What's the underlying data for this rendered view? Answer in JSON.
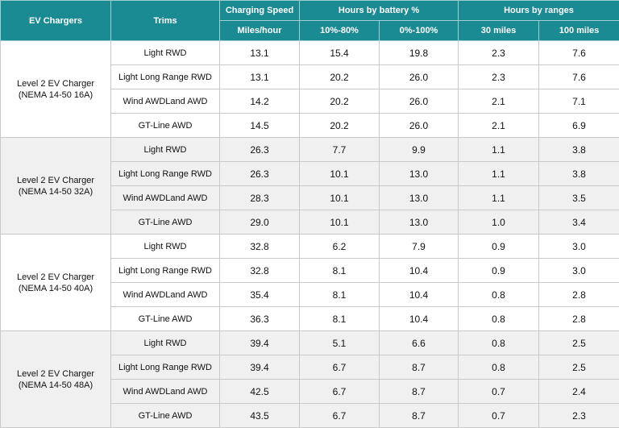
{
  "headers": {
    "ev_chargers": "EV Chargers",
    "trims": "Trims",
    "charging_speed": "Charging Speed",
    "hours_by_battery": "Hours by battery %",
    "hours_by_ranges": "Hours by ranges",
    "miles_per_hour": "Miles/hour",
    "pct_10_80": "10%-80%",
    "pct_0_100": "0%-100%",
    "miles_30": "30 miles",
    "miles_100": "100 miles"
  },
  "groups": [
    {
      "charger_line1": "Level 2 EV Charger",
      "charger_line2": "(NEMA 14-50 16A)",
      "rows": [
        {
          "trim": "Light RWD",
          "speed": "13.1",
          "p10_80": "15.4",
          "p0_100": "19.8",
          "m30": "2.3",
          "m100": "7.6"
        },
        {
          "trim": "Light Long Range RWD",
          "speed": "13.1",
          "p10_80": "20.2",
          "p0_100": "26.0",
          "m30": "2.3",
          "m100": "7.6"
        },
        {
          "trim": "Wind AWDLand AWD",
          "speed": "14.2",
          "p10_80": "20.2",
          "p0_100": "26.0",
          "m30": "2.1",
          "m100": "7.1"
        },
        {
          "trim": "GT-Line AWD",
          "speed": "14.5",
          "p10_80": "20.2",
          "p0_100": "26.0",
          "m30": "2.1",
          "m100": "6.9"
        }
      ]
    },
    {
      "charger_line1": "Level 2 EV Charger",
      "charger_line2": "(NEMA 14-50 32A)",
      "rows": [
        {
          "trim": "Light RWD",
          "speed": "26.3",
          "p10_80": "7.7",
          "p0_100": "9.9",
          "m30": "1.1",
          "m100": "3.8"
        },
        {
          "trim": "Light Long Range RWD",
          "speed": "26.3",
          "p10_80": "10.1",
          "p0_100": "13.0",
          "m30": "1.1",
          "m100": "3.8"
        },
        {
          "trim": "Wind AWDLand AWD",
          "speed": "28.3",
          "p10_80": "10.1",
          "p0_100": "13.0",
          "m30": "1.1",
          "m100": "3.5"
        },
        {
          "trim": "GT-Line AWD",
          "speed": "29.0",
          "p10_80": "10.1",
          "p0_100": "13.0",
          "m30": "1.0",
          "m100": "3.4"
        }
      ]
    },
    {
      "charger_line1": "Level 2 EV Charger",
      "charger_line2": "(NEMA 14-50 40A)",
      "rows": [
        {
          "trim": "Light RWD",
          "speed": "32.8",
          "p10_80": "6.2",
          "p0_100": "7.9",
          "m30": "0.9",
          "m100": "3.0"
        },
        {
          "trim": "Light Long Range RWD",
          "speed": "32.8",
          "p10_80": "8.1",
          "p0_100": "10.4",
          "m30": "0.9",
          "m100": "3.0"
        },
        {
          "trim": "Wind AWDLand AWD",
          "speed": "35.4",
          "p10_80": "8.1",
          "p0_100": "10.4",
          "m30": "0.8",
          "m100": "2.8"
        },
        {
          "trim": "GT-Line AWD",
          "speed": "36.3",
          "p10_80": "8.1",
          "p0_100": "10.4",
          "m30": "0.8",
          "m100": "2.8"
        }
      ]
    },
    {
      "charger_line1": "Level 2 EV Charger",
      "charger_line2": "(NEMA 14-50 48A)",
      "rows": [
        {
          "trim": "Light RWD",
          "speed": "39.4",
          "p10_80": "5.1",
          "p0_100": "6.6",
          "m30": "0.8",
          "m100": "2.5"
        },
        {
          "trim": "Light Long Range RWD",
          "speed": "39.4",
          "p10_80": "6.7",
          "p0_100": "8.7",
          "m30": "0.8",
          "m100": "2.5"
        },
        {
          "trim": "Wind AWDLand AWD",
          "speed": "42.5",
          "p10_80": "6.7",
          "p0_100": "8.7",
          "m30": "0.7",
          "m100": "2.4"
        },
        {
          "trim": "GT-Line AWD",
          "speed": "43.5",
          "p10_80": "6.7",
          "p0_100": "8.7",
          "m30": "0.7",
          "m100": "2.3"
        }
      ]
    }
  ]
}
